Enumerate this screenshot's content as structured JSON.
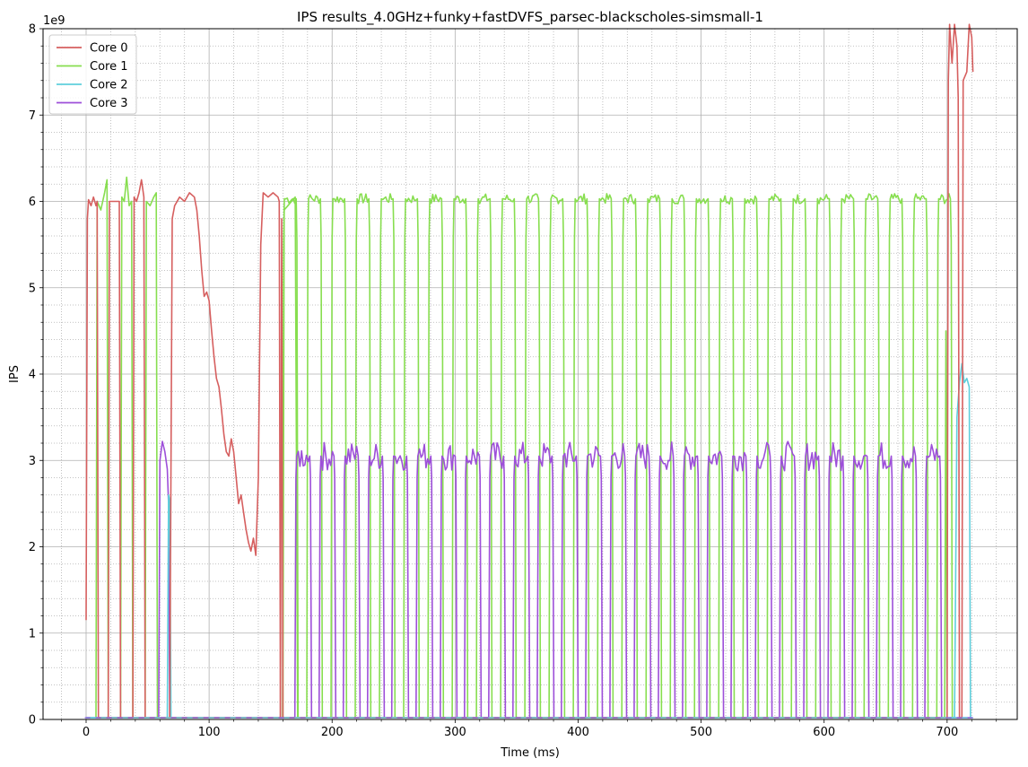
{
  "chart_data": {
    "type": "line",
    "title": "IPS results_4.0GHz+funky+fastDVFS_parsec-blackscholes-simsmall-1",
    "xlabel": "Time (ms)",
    "ylabel": "IPS",
    "y_scale_label": "1e9",
    "y_scale": 1000000000,
    "xlim": [
      -35,
      757
    ],
    "ylim": [
      0,
      8
    ],
    "xticks": [
      0,
      100,
      200,
      300,
      400,
      500,
      600,
      700
    ],
    "yticks": [
      0,
      1,
      2,
      3,
      4,
      5,
      6,
      7,
      8
    ],
    "x_minor_step": 20,
    "y_minor_step": 0.2,
    "grid": true,
    "legend_position": "upper-left",
    "series": [
      {
        "name": "Core 0",
        "color": "#d65f5f",
        "points": [
          [
            0,
            1.15
          ],
          [
            1,
            5.8
          ],
          [
            2,
            6.02
          ],
          [
            4,
            5.95
          ],
          [
            6,
            6.05
          ],
          [
            8,
            5.95
          ],
          [
            9,
            6.0
          ],
          [
            10,
            0.02
          ],
          [
            158,
            0.02
          ],
          [
            159,
            5.8
          ],
          [
            160,
            0.02
          ],
          [
            700,
            0.02
          ],
          [
            701,
            7.4
          ],
          [
            702,
            8.05
          ],
          [
            704,
            7.6
          ],
          [
            706,
            8.05
          ],
          [
            708,
            7.8
          ],
          [
            709,
            7.2
          ],
          [
            710,
            0.02
          ],
          [
            712,
            0.02
          ],
          [
            713,
            7.4
          ],
          [
            716,
            7.5
          ],
          [
            718,
            8.05
          ],
          [
            720,
            7.9
          ],
          [
            721,
            7.5
          ]
        ],
        "segments": [
          [
            [
              18,
              0.02
            ],
            [
              19,
              6.0
            ],
            [
              27,
              6.0
            ],
            [
              28,
              0.02
            ]
          ],
          [
            [
              38,
              0.02
            ],
            [
              39,
              6.05
            ],
            [
              41,
              6.0
            ],
            [
              43,
              6.1
            ],
            [
              45,
              6.25
            ],
            [
              47,
              6.05
            ],
            [
              48,
              0.02
            ]
          ],
          [
            [
              68,
              0.02
            ],
            [
              70,
              5.8
            ],
            [
              72,
              5.95
            ],
            [
              76,
              6.05
            ],
            [
              80,
              6.0
            ],
            [
              84,
              6.1
            ],
            [
              88,
              6.05
            ],
            [
              90,
              5.9
            ],
            [
              92,
              5.6
            ],
            [
              94,
              5.2
            ],
            [
              96,
              4.9
            ],
            [
              98,
              4.95
            ],
            [
              100,
              4.85
            ],
            [
              102,
              4.5
            ],
            [
              104,
              4.2
            ],
            [
              106,
              3.95
            ],
            [
              108,
              3.85
            ],
            [
              110,
              3.6
            ],
            [
              112,
              3.3
            ],
            [
              114,
              3.1
            ],
            [
              116,
              3.05
            ],
            [
              118,
              3.25
            ],
            [
              120,
              3.1
            ],
            [
              122,
              2.8
            ],
            [
              124,
              2.5
            ],
            [
              126,
              2.6
            ],
            [
              128,
              2.4
            ],
            [
              130,
              2.2
            ],
            [
              132,
              2.05
            ],
            [
              134,
              1.95
            ],
            [
              136,
              2.1
            ],
            [
              138,
              1.9
            ],
            [
              140,
              2.8
            ],
            [
              142,
              5.5
            ],
            [
              144,
              6.1
            ],
            [
              148,
              6.05
            ],
            [
              152,
              6.1
            ],
            [
              156,
              6.05
            ],
            [
              157,
              6.0
            ],
            [
              158,
              0.02
            ]
          ]
        ]
      },
      {
        "name": "Core 1",
        "color": "#87de4f",
        "pulse": {
          "start": 160,
          "period": 19.7,
          "count": 28,
          "width": 12,
          "level": 6.03,
          "jitter": 0.06
        },
        "early": [
          [
            [
              8,
              0.02
            ],
            [
              9,
              6.0
            ],
            [
              12,
              5.9
            ],
            [
              15,
              6.1
            ],
            [
              17,
              6.25
            ],
            [
              18,
              0.02
            ]
          ],
          [
            [
              28,
              0.02
            ],
            [
              29,
              6.05
            ],
            [
              31,
              6.0
            ],
            [
              33,
              6.28
            ],
            [
              35,
              5.95
            ],
            [
              37,
              6.0
            ],
            [
              38,
              0.02
            ]
          ],
          [
            [
              48,
              0.02
            ],
            [
              49,
              6.0
            ],
            [
              52,
              5.95
            ],
            [
              55,
              6.05
            ],
            [
              57,
              6.1
            ],
            [
              58,
              0.02
            ]
          ],
          [
            [
              160,
              0.02
            ],
            [
              161,
              5.9
            ],
            [
              164,
              5.95
            ],
            [
              167,
              6.0
            ],
            [
              170,
              6.05
            ],
            [
              172,
              0.02
            ]
          ]
        ],
        "late": [
          [
            698,
            0.02
          ],
          [
            699,
            4.5
          ],
          [
            700,
            0.02
          ]
        ]
      },
      {
        "name": "Core 2",
        "color": "#5fcfdc",
        "points": [
          [
            0,
            0.02
          ],
          [
            66,
            0.02
          ],
          [
            67,
            2.6
          ],
          [
            68,
            2.55
          ],
          [
            69,
            0.02
          ],
          [
            706,
            0.02
          ],
          [
            708,
            3.5
          ],
          [
            710,
            3.9
          ],
          [
            712,
            4.12
          ],
          [
            714,
            3.9
          ],
          [
            716,
            3.95
          ],
          [
            718,
            3.85
          ],
          [
            719,
            0.02
          ],
          [
            721,
            0.02
          ]
        ]
      },
      {
        "name": "Core 3",
        "color": "#9d4fd9",
        "points": [
          [
            0,
            0.02
          ],
          [
            59,
            0.02
          ],
          [
            60,
            3.0
          ],
          [
            62,
            3.22
          ],
          [
            64,
            3.1
          ],
          [
            66,
            2.9
          ],
          [
            67,
            2.5
          ],
          [
            68,
            0.02
          ],
          [
            170,
            0.02
          ]
        ],
        "pulse": {
          "start": 170,
          "period": 19.7,
          "count": 27,
          "width": 13,
          "level": 3.05,
          "jitter": 0.17
        },
        "tail": [
          [
            702,
            0.02
          ],
          [
            720,
            0.02
          ]
        ]
      }
    ]
  }
}
